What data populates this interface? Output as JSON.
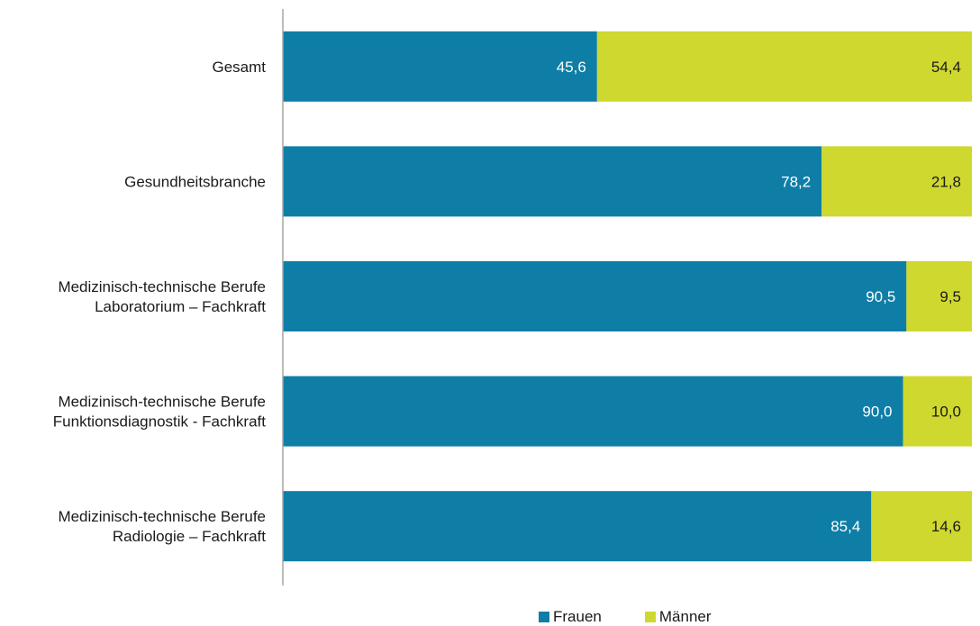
{
  "chart_data": {
    "type": "bar",
    "orientation": "horizontal",
    "stacked": true,
    "categories": [
      [
        "Gesamt"
      ],
      [
        "Gesundheitsbranche"
      ],
      [
        "Medizinisch-technische Berufe",
        "Laboratorium – Fachkraft"
      ],
      [
        "Medizinisch-technische Berufe",
        "Funktionsdiagnostik - Fachkraft"
      ],
      [
        "Medizinisch-technische Berufe",
        "Radiologie – Fachkraft"
      ]
    ],
    "series": [
      {
        "name": "Frauen",
        "color": "#0e7ea6",
        "label_color": "#ffffff",
        "values": [
          45.6,
          78.2,
          90.5,
          90.0,
          85.4
        ],
        "labels": [
          "45,6",
          "78,2",
          "90,5",
          "90,0",
          "85,4"
        ]
      },
      {
        "name": "Männer",
        "color": "#cfd82e",
        "label_color": "#1a1a1a",
        "values": [
          54.4,
          21.8,
          9.5,
          10.0,
          14.6
        ],
        "labels": [
          "54,4",
          "21,8",
          "9,5",
          "10,0",
          "14,6"
        ]
      }
    ],
    "xlim": [
      0,
      100
    ],
    "grid": false,
    "legend_position": "bottom",
    "title": "",
    "xlabel": "",
    "ylabel": ""
  }
}
